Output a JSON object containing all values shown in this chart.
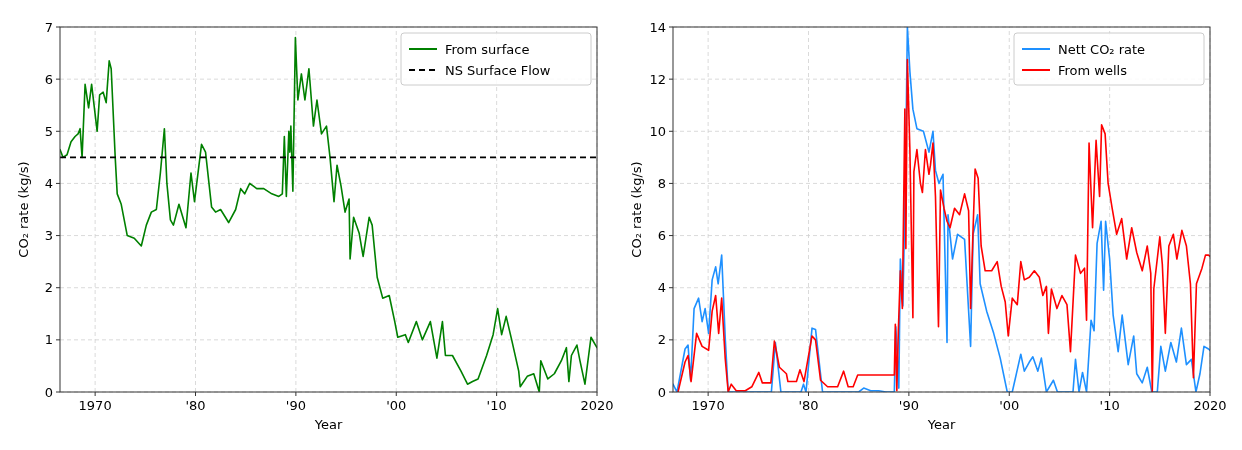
{
  "chart_data": [
    {
      "type": "line",
      "xlabel": "Year",
      "ylabel": "CO₂ rate (kg/s)",
      "xlim": [
        1966.5,
        2020
      ],
      "xticks": [
        {
          "value": 1970,
          "label": "1970"
        },
        {
          "value": 1980,
          "label": "'80"
        },
        {
          "value": 1990,
          "label": "'90"
        },
        {
          "value": 2000,
          "label": "'00"
        },
        {
          "value": 2010,
          "label": "'10"
        },
        {
          "value": 2020,
          "label": "2020"
        }
      ],
      "ylim": [
        0,
        7
      ],
      "yticks": [
        0,
        1,
        2,
        3,
        4,
        5,
        6,
        7
      ],
      "grid": true,
      "legend": "top right",
      "ref_lines": [
        {
          "axis": "y",
          "value": 4.5,
          "label": "NS Surface Flow",
          "color": "#000000",
          "line_style": "dashed"
        }
      ],
      "series": [
        {
          "name": "From surface",
          "color": "#008000",
          "x": [
            1966.5,
            1966.8,
            1967.2,
            1967.6,
            1968.0,
            1968.3,
            1968.5,
            1968.7,
            1969.0,
            1969.35,
            1969.65,
            1970.2,
            1970.45,
            1970.8,
            1971.1,
            1971.4,
            1971.6,
            1972.0,
            1972.2,
            1972.6,
            1973.2,
            1973.9,
            1974.6,
            1975.1,
            1975.6,
            1976.1,
            1976.5,
            1976.9,
            1977.15,
            1977.5,
            1977.8,
            1978.35,
            1979.05,
            1979.55,
            1979.9,
            1980.6,
            1981.0,
            1981.6,
            1982.0,
            1982.5,
            1983.3,
            1984.0,
            1984.5,
            1984.9,
            1985.4,
            1986.1,
            1986.8,
            1987.6,
            1988.3,
            1988.65,
            1988.85,
            1989.05,
            1989.3,
            1989.4,
            1989.5,
            1989.7,
            1989.95,
            1990.2,
            1990.55,
            1990.9,
            1991.3,
            1991.75,
            1992.1,
            1992.55,
            1993.05,
            1993.4,
            1993.8,
            1994.1,
            1994.5,
            1994.9,
            1995.3,
            1995.4,
            1995.75,
            1996.3,
            1996.7,
            1997.3,
            1997.6,
            1998.1,
            1998.65,
            1999.3,
            1999.85,
            2000.15,
            2000.9,
            2001.2,
            2002.0,
            2002.6,
            2003.4,
            2004.05,
            2004.6,
            2004.9,
            2005.6,
            2006.45,
            2007.1,
            2007.6,
            2008.15,
            2009.0,
            2009.65,
            2010.1,
            2010.5,
            2010.95,
            2011.5,
            2012.2,
            2012.35,
            2013.05,
            2013.7,
            2014.25,
            2014.4,
            2015.1,
            2015.75,
            2016.45,
            2016.95,
            2017.2,
            2017.45,
            2018.0,
            2018.3,
            2018.8,
            2019.4,
            2019.85,
            2020.0
          ],
          "values": [
            4.65,
            4.5,
            4.55,
            4.8,
            4.9,
            4.95,
            5.05,
            4.5,
            5.9,
            5.45,
            5.9,
            5.0,
            5.7,
            5.75,
            5.55,
            6.35,
            6.2,
            4.5,
            3.8,
            3.6,
            3.0,
            2.95,
            2.8,
            3.2,
            3.45,
            3.5,
            4.2,
            5.05,
            4.0,
            3.3,
            3.2,
            3.6,
            3.15,
            4.2,
            3.65,
            4.75,
            4.6,
            3.55,
            3.45,
            3.5,
            3.25,
            3.5,
            3.9,
            3.8,
            4.0,
            3.9,
            3.9,
            3.8,
            3.75,
            3.8,
            4.9,
            3.75,
            5.0,
            4.6,
            5.1,
            3.85,
            6.8,
            5.6,
            6.1,
            5.6,
            6.2,
            5.1,
            5.6,
            4.95,
            5.1,
            4.5,
            3.65,
            4.35,
            3.95,
            3.45,
            3.7,
            2.55,
            3.35,
            3.05,
            2.6,
            3.35,
            3.2,
            2.2,
            1.8,
            1.85,
            1.35,
            1.05,
            1.1,
            0.95,
            1.35,
            1.0,
            1.35,
            0.65,
            1.35,
            0.7,
            0.7,
            0.4,
            0.15,
            0.2,
            0.25,
            0.7,
            1.1,
            1.6,
            1.1,
            1.45,
            1.0,
            0.4,
            0.1,
            0.3,
            0.35,
            0.0,
            0.6,
            0.25,
            0.35,
            0.6,
            0.85,
            0.2,
            0.7,
            0.9,
            0.6,
            0.15,
            1.05,
            0.9,
            0.85
          ]
        }
      ]
    },
    {
      "type": "line",
      "xlabel": "Year",
      "ylabel": "CO₂ rate (kg/s)",
      "xlim": [
        1966.5,
        2020
      ],
      "xticks": [
        {
          "value": 1970,
          "label": "1970"
        },
        {
          "value": 1980,
          "label": "'80"
        },
        {
          "value": 1990,
          "label": "'90"
        },
        {
          "value": 2000,
          "label": "'00"
        },
        {
          "value": 2010,
          "label": "'10"
        },
        {
          "value": 2020,
          "label": "2020"
        }
      ],
      "ylim": [
        0,
        14
      ],
      "yticks": [
        0,
        2,
        4,
        6,
        8,
        10,
        12,
        14
      ],
      "grid": true,
      "legend": "top right",
      "series": [
        {
          "name": "Nett CO₂ rate",
          "color": "#1e90ff",
          "x": [
            1966.5,
            1966.9,
            1967.7,
            1968.0,
            1968.25,
            1968.6,
            1969.05,
            1969.4,
            1969.7,
            1970.05,
            1970.4,
            1970.75,
            1971.0,
            1971.35,
            1971.7,
            1972.0,
            1976.3,
            1976.7,
            1977.25,
            1979.25,
            1979.5,
            1979.75,
            1980.35,
            1980.7,
            1981.4,
            1985.0,
            1985.5,
            1986.2,
            1987.0,
            1987.7,
            1988.55,
            1988.7,
            1989.0,
            1989.15,
            1989.4,
            1989.65,
            1989.85,
            1990.1,
            1990.4,
            1990.8,
            1991.45,
            1992.0,
            1992.4,
            1992.65,
            1993.0,
            1993.4,
            1993.8,
            1993.9,
            1994.35,
            1994.85,
            1995.55,
            1996.15,
            1996.4,
            1996.85,
            1997.1,
            1997.75,
            1998.45,
            1999.1,
            1999.8,
            2000.3,
            2001.15,
            2001.5,
            2002.0,
            2002.35,
            2002.85,
            2003.2,
            2003.7,
            2004.4,
            2004.8,
            2006.35,
            2006.6,
            2006.95,
            2007.3,
            2007.7,
            2008.15,
            2008.45,
            2008.75,
            2009.15,
            2009.4,
            2009.6,
            2010.0,
            2010.35,
            2010.85,
            2011.25,
            2011.85,
            2012.4,
            2012.7,
            2013.25,
            2013.75,
            2014.2,
            2014.75,
            2015.1,
            2015.55,
            2016.1,
            2016.65,
            2017.15,
            2017.65,
            2018.15,
            2018.6,
            2019.0,
            2019.4,
            2019.85,
            2020.0
          ],
          "values": [
            0.3,
            0,
            1.65,
            1.8,
            0.45,
            3.2,
            3.6,
            2.7,
            3.2,
            2.25,
            4.3,
            4.8,
            4.15,
            5.25,
            2.1,
            0,
            0,
            1.9,
            0,
            0,
            0.3,
            0,
            2.45,
            2.4,
            0,
            0,
            0.15,
            0.05,
            0.05,
            0,
            0,
            2.5,
            0.15,
            5.1,
            3.3,
            8.0,
            14,
            12.3,
            10.85,
            10.1,
            10.0,
            9.2,
            10.0,
            8.5,
            8.0,
            8.35,
            1.9,
            6.8,
            5.1,
            6.05,
            5.85,
            1.75,
            6.05,
            6.8,
            4.15,
            3.1,
            2.25,
            1.3,
            0,
            0,
            1.45,
            0.8,
            1.15,
            1.35,
            0.8,
            1.3,
            0,
            0.45,
            0,
            0,
            1.25,
            0,
            0.75,
            0,
            2.75,
            2.35,
            5.7,
            6.55,
            3.9,
            6.55,
            5.1,
            2.95,
            1.55,
            2.95,
            1.05,
            2.15,
            0.7,
            0.35,
            0.95,
            0,
            0,
            1.75,
            0.8,
            1.9,
            1.15,
            2.45,
            1.05,
            1.25,
            0,
            0.7,
            1.75,
            1.65,
            1.6
          ]
        },
        {
          "name": "From wells",
          "color": "#ff0000",
          "x": [
            1967.0,
            1967.7,
            1968.0,
            1968.3,
            1968.85,
            1969.4,
            1970.05,
            1970.4,
            1970.75,
            1971.05,
            1971.35,
            1971.7,
            1972.0,
            1972.3,
            1972.8,
            1973.7,
            1974.35,
            1975.05,
            1975.4,
            1976.25,
            1976.6,
            1977.1,
            1977.8,
            1977.95,
            1978.8,
            1979.15,
            1979.55,
            1980.35,
            1980.7,
            1981.2,
            1981.9,
            1982.9,
            1983.5,
            1983.95,
            1984.45,
            1984.9,
            1988.55,
            1988.65,
            1988.8,
            1988.95,
            1989.15,
            1989.35,
            1989.6,
            1989.7,
            1989.85,
            1990.1,
            1990.4,
            1990.5,
            1990.8,
            1991.15,
            1991.35,
            1991.65,
            1992.0,
            1992.15,
            1992.4,
            1992.65,
            1992.95,
            1993.15,
            1993.5,
            1993.8,
            1994.1,
            1994.55,
            1995.05,
            1995.55,
            1995.95,
            1996.15,
            1996.4,
            1996.6,
            1996.9,
            1997.2,
            1997.6,
            1998.25,
            1998.8,
            1999.2,
            1999.6,
            1999.9,
            2000.3,
            2000.8,
            2001.15,
            2001.5,
            2002.0,
            2002.5,
            2003.0,
            2003.35,
            2003.7,
            2003.9,
            2004.2,
            2004.75,
            2005.25,
            2005.75,
            2006.1,
            2006.6,
            2007.1,
            2007.5,
            2007.7,
            2007.95,
            2008.3,
            2008.65,
            2009.0,
            2009.2,
            2009.55,
            2009.85,
            2010.25,
            2010.7,
            2011.2,
            2011.7,
            2012.2,
            2012.7,
            2013.25,
            2013.75,
            2014.1,
            2014.25,
            2014.4,
            2015.0,
            2015.25,
            2015.55,
            2015.9,
            2016.35,
            2016.7,
            2017.2,
            2017.65,
            2018.05,
            2018.35,
            2018.65,
            2019.2,
            2019.55,
            2019.85,
            2020.0
          ],
          "values": [
            0,
            1.15,
            1.4,
            0.4,
            2.25,
            1.75,
            1.6,
            3.1,
            3.7,
            2.25,
            3.6,
            1.3,
            0,
            0.3,
            0.05,
            0.05,
            0.2,
            0.75,
            0.35,
            0.35,
            1.95,
            0.95,
            0.7,
            0.4,
            0.4,
            0.85,
            0.4,
            2.15,
            2.0,
            0.45,
            0.2,
            0.2,
            0.8,
            0.2,
            0.2,
            0.65,
            0.65,
            2.6,
            0.05,
            2.35,
            4.65,
            3.2,
            10.85,
            5.5,
            12.75,
            9.3,
            2.85,
            8.45,
            9.3,
            8.0,
            7.65,
            9.3,
            8.35,
            8.7,
            9.55,
            7.5,
            2.5,
            7.75,
            7.05,
            6.55,
            6.3,
            7.05,
            6.8,
            7.6,
            6.95,
            3.2,
            6.3,
            8.55,
            8.2,
            5.6,
            4.65,
            4.65,
            5.0,
            4.05,
            3.45,
            2.15,
            3.6,
            3.35,
            5.0,
            4.3,
            4.4,
            4.65,
            4.4,
            3.7,
            4.05,
            2.25,
            3.95,
            3.2,
            3.7,
            3.35,
            1.55,
            5.25,
            4.55,
            4.75,
            2.75,
            9.55,
            6.3,
            9.65,
            7.5,
            10.25,
            9.9,
            8.0,
            7.05,
            6.05,
            6.65,
            5.1,
            6.3,
            5.35,
            4.65,
            5.6,
            4.55,
            0,
            3.95,
            5.95,
            4.9,
            2.25,
            5.6,
            6.05,
            5.1,
            6.2,
            5.6,
            4.15,
            0.55,
            4.15,
            4.75,
            5.25,
            5.25,
            5.2
          ]
        }
      ]
    }
  ]
}
